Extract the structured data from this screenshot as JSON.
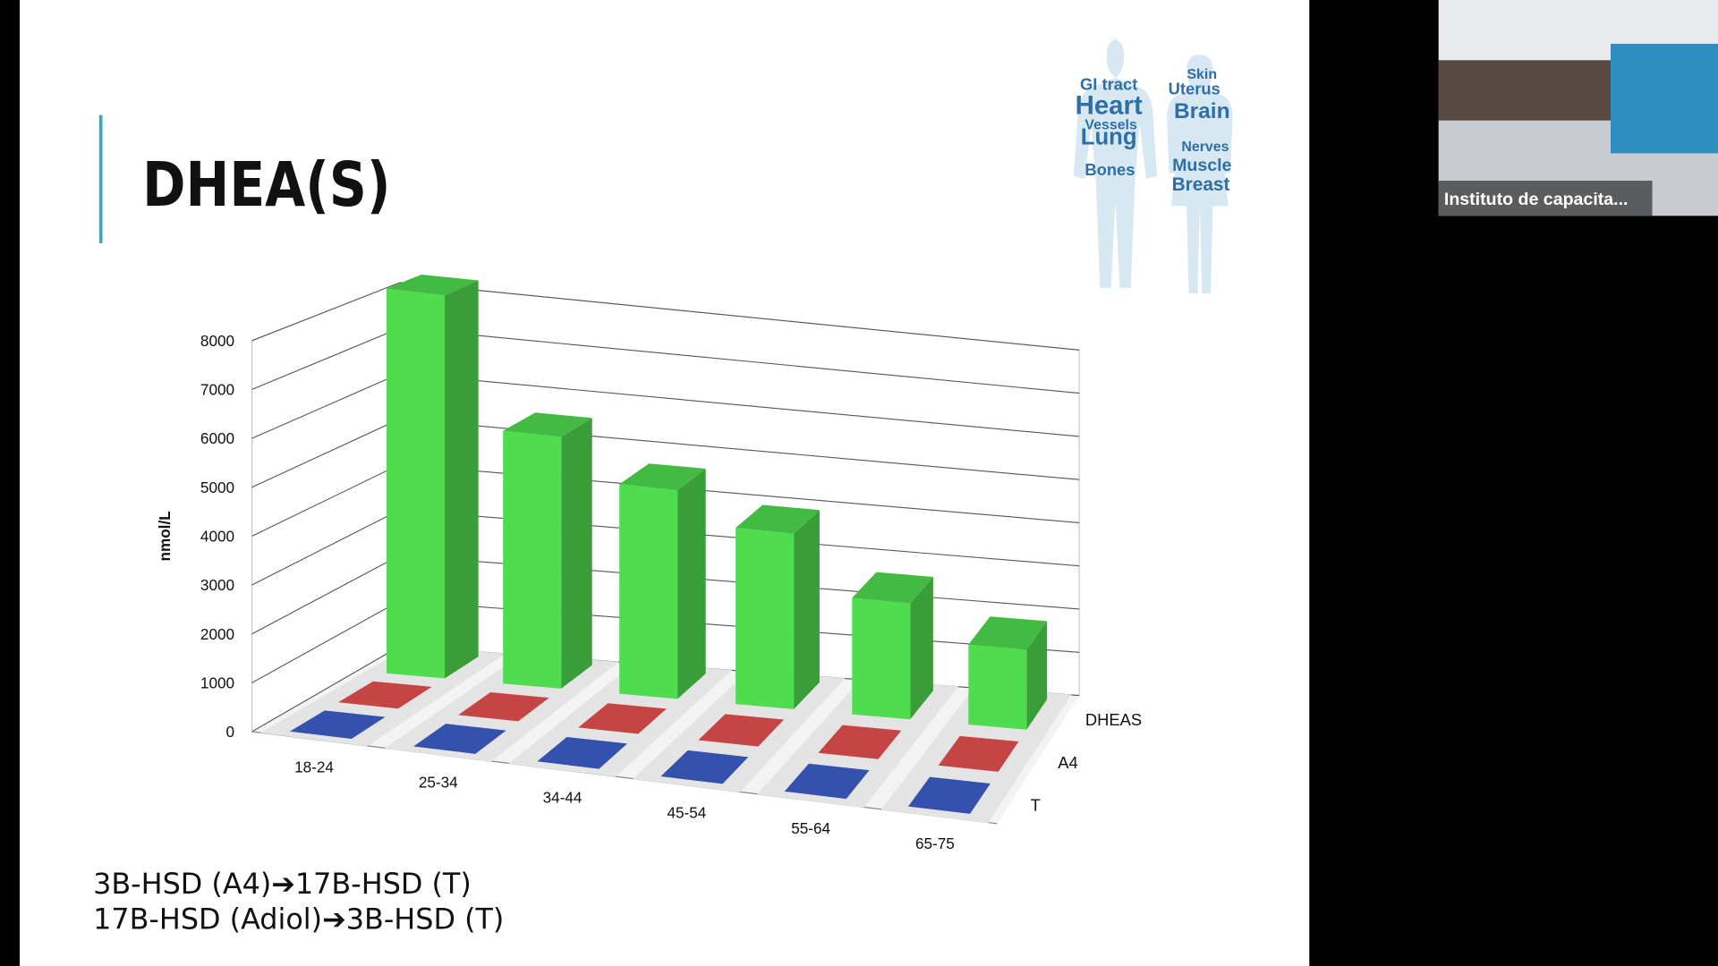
{
  "slide": {
    "title": "DHEA(S)",
    "notes": [
      "3B-HSD (A4)➔17B-HSD (T)",
      "17B-HSD (Adiol)➔3B-HSD (T)"
    ],
    "word_cloud": [
      "GI tract",
      "Heart",
      "Vessels",
      "Lung",
      "Bones",
      "Skin",
      "Uterus",
      "Brain",
      "Nerves",
      "Muscle",
      "Breast"
    ]
  },
  "video_tile": {
    "label": "Instituto de capacita..."
  },
  "chart_data": {
    "type": "bar",
    "y_label": "nmol/L",
    "categories": [
      "18-24",
      "25-34",
      "34-44",
      "45-54",
      "55-64",
      "65-75"
    ],
    "series": [
      {
        "name": "DHEAS",
        "color": "#4fdc4f",
        "values": [
          8300,
          5500,
          4600,
          3900,
          2600,
          1800
        ]
      },
      {
        "name": "A4",
        "color": "#e85050",
        "values": [
          0,
          0,
          0,
          0,
          0,
          0
        ]
      },
      {
        "name": "T",
        "color": "#3d5fcc",
        "values": [
          0,
          0,
          0,
          0,
          0,
          0
        ]
      }
    ],
    "ylim": [
      0,
      8000
    ],
    "yticks": [
      0,
      1000,
      2000,
      3000,
      4000,
      5000,
      6000,
      7000,
      8000
    ],
    "grid": true
  }
}
